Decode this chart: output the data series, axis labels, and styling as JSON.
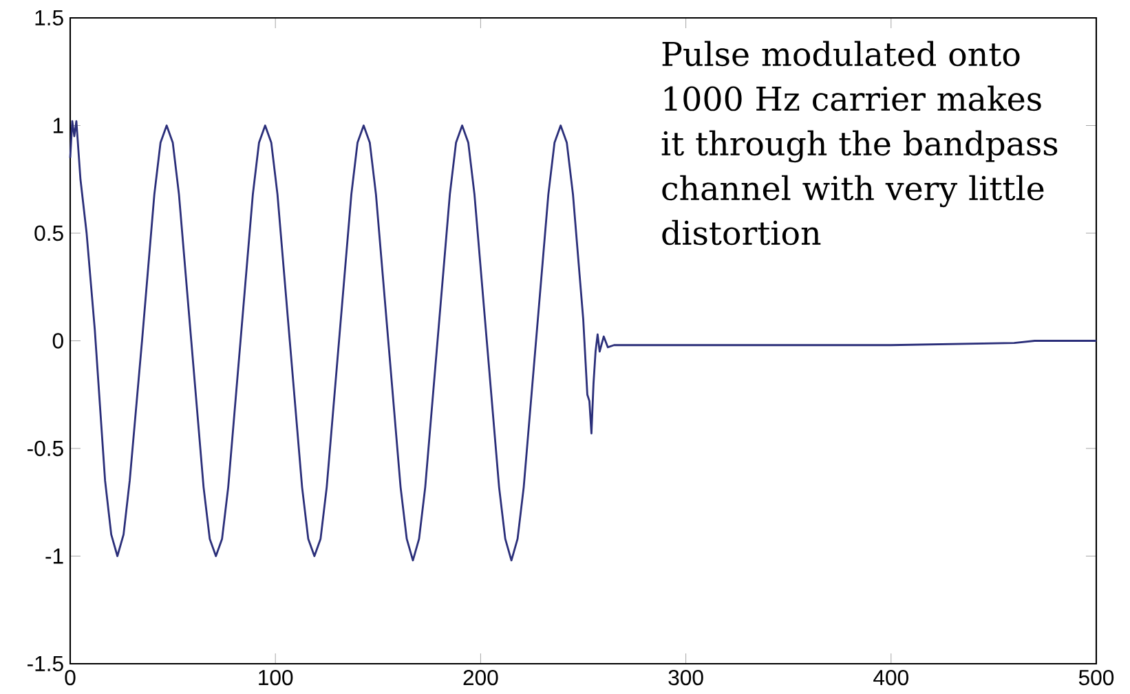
{
  "chart_data": {
    "type": "line",
    "xlim": [
      0,
      500
    ],
    "ylim": [
      -1.5,
      1.5
    ],
    "xticks": [
      0,
      100,
      200,
      300,
      400,
      500
    ],
    "yticks": [
      -1.5,
      -1,
      -0.5,
      0,
      0.5,
      1,
      1.5
    ],
    "grid": false,
    "marker": "none",
    "line_style": "solid",
    "annotations": [
      "Pulse modulated onto 1000 Hz carrier makes it through the bandpass channel with very little distortion"
    ],
    "series": [
      {
        "color": "#2b2f7a",
        "x": [
          0,
          1,
          2,
          3,
          5,
          8,
          12,
          17,
          20,
          23,
          26,
          29,
          35,
          41,
          44,
          47,
          50,
          53,
          59,
          65,
          68,
          71,
          74,
          77,
          83,
          89,
          92,
          95,
          98,
          101,
          107,
          113,
          116,
          119,
          122,
          125,
          131,
          137,
          140,
          143,
          146,
          149,
          155,
          161,
          164,
          167,
          170,
          173,
          179,
          185,
          188,
          191,
          194,
          197,
          203,
          209,
          212,
          215,
          218,
          221,
          227,
          233,
          236,
          239,
          242,
          245,
          250,
          252,
          253,
          254,
          255,
          256,
          257,
          258,
          260,
          262,
          265,
          300,
          400,
          460,
          470,
          500
        ],
        "values": [
          0.85,
          1.02,
          0.95,
          1.02,
          0.75,
          0.5,
          0.05,
          -0.65,
          -0.9,
          -1.0,
          -0.9,
          -0.65,
          0,
          0.68,
          0.92,
          1.0,
          0.92,
          0.68,
          0,
          -0.68,
          -0.92,
          -1.0,
          -0.92,
          -0.68,
          0,
          0.68,
          0.92,
          1.0,
          0.92,
          0.68,
          0,
          -0.68,
          -0.92,
          -1.0,
          -0.92,
          -0.68,
          0,
          0.68,
          0.92,
          1.0,
          0.92,
          0.68,
          0,
          -0.68,
          -0.92,
          -1.02,
          -0.92,
          -0.68,
          0,
          0.68,
          0.92,
          1.0,
          0.92,
          0.68,
          0,
          -0.68,
          -0.92,
          -1.02,
          -0.92,
          -0.68,
          0,
          0.68,
          0.92,
          1.0,
          0.92,
          0.68,
          0.1,
          -0.25,
          -0.28,
          -0.43,
          -0.2,
          -0.05,
          0.03,
          -0.05,
          0.02,
          -0.03,
          -0.02,
          -0.02,
          -0.02,
          -0.01,
          0,
          0
        ]
      }
    ]
  }
}
